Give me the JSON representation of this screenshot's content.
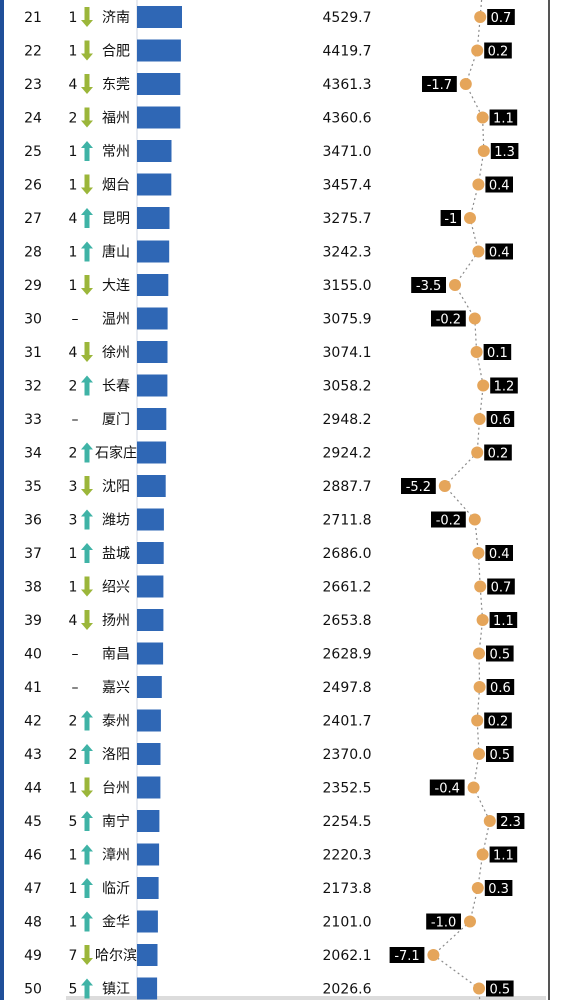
{
  "chart_data": {
    "type": "table",
    "colors": {
      "bar": "#2f67b5",
      "arrow_up": "#3fb3a6",
      "arrow_down": "#9bb63a",
      "dot": "#e5a55a",
      "label_bg": "#000000",
      "label_text": "#ffffff",
      "frame": "#1f4f99"
    },
    "rows": [
      {
        "rank": "21",
        "change": "1",
        "dir": "down",
        "city": "济南",
        "gdp": "4529.7",
        "growth": 0.7,
        "growth_label": "0.7"
      },
      {
        "rank": "22",
        "change": "1",
        "dir": "down",
        "city": "合肥",
        "gdp": "4419.7",
        "growth": 0.2,
        "growth_label": "0.2"
      },
      {
        "rank": "23",
        "change": "4",
        "dir": "down",
        "city": "东莞",
        "gdp": "4361.3",
        "growth": -1.7,
        "growth_label": "-1.7"
      },
      {
        "rank": "24",
        "change": "2",
        "dir": "down",
        "city": "福州",
        "gdp": "4360.6",
        "growth": 1.1,
        "growth_label": "1.1"
      },
      {
        "rank": "25",
        "change": "1",
        "dir": "up",
        "city": "常州",
        "gdp": "3471.0",
        "growth": 1.3,
        "growth_label": "1.3"
      },
      {
        "rank": "26",
        "change": "1",
        "dir": "down",
        "city": "烟台",
        "gdp": "3457.4",
        "growth": 0.4,
        "growth_label": "0.4"
      },
      {
        "rank": "27",
        "change": "4",
        "dir": "up",
        "city": "昆明",
        "gdp": "3275.7",
        "growth": -1,
        "growth_label": "-1"
      },
      {
        "rank": "28",
        "change": "1",
        "dir": "up",
        "city": "唐山",
        "gdp": "3242.3",
        "growth": 0.4,
        "growth_label": "0.4"
      },
      {
        "rank": "29",
        "change": "1",
        "dir": "down",
        "city": "大连",
        "gdp": "3155.0",
        "growth": -3.5,
        "growth_label": "-3.5"
      },
      {
        "rank": "30",
        "change": "–",
        "dir": "none",
        "city": "温州",
        "gdp": "3075.9",
        "growth": -0.2,
        "growth_label": "-0.2"
      },
      {
        "rank": "31",
        "change": "4",
        "dir": "down",
        "city": "徐州",
        "gdp": "3074.1",
        "growth": 0.1,
        "growth_label": "0.1"
      },
      {
        "rank": "32",
        "change": "2",
        "dir": "up",
        "city": "长春",
        "gdp": "3058.2",
        "growth": 1.2,
        "growth_label": "1.2"
      },
      {
        "rank": "33",
        "change": "–",
        "dir": "none",
        "city": "厦门",
        "gdp": "2948.2",
        "growth": 0.6,
        "growth_label": "0.6"
      },
      {
        "rank": "34",
        "change": "2",
        "dir": "up",
        "city": "石家庄",
        "gdp": "2924.2",
        "growth": 0.2,
        "growth_label": "0.2"
      },
      {
        "rank": "35",
        "change": "3",
        "dir": "down",
        "city": "沈阳",
        "gdp": "2887.7",
        "growth": -5.2,
        "growth_label": "-5.2"
      },
      {
        "rank": "36",
        "change": "3",
        "dir": "up",
        "city": "潍坊",
        "gdp": "2711.8",
        "growth": -0.2,
        "growth_label": "-0.2"
      },
      {
        "rank": "37",
        "change": "1",
        "dir": "up",
        "city": "盐城",
        "gdp": "2686.0",
        "growth": 0.4,
        "growth_label": "0.4"
      },
      {
        "rank": "38",
        "change": "1",
        "dir": "down",
        "city": "绍兴",
        "gdp": "2661.2",
        "growth": 0.7,
        "growth_label": "0.7"
      },
      {
        "rank": "39",
        "change": "4",
        "dir": "down",
        "city": "扬州",
        "gdp": "2653.8",
        "growth": 1.1,
        "growth_label": "1.1"
      },
      {
        "rank": "40",
        "change": "–",
        "dir": "none",
        "city": "南昌",
        "gdp": "2628.9",
        "growth": 0.5,
        "growth_label": "0.5"
      },
      {
        "rank": "41",
        "change": "–",
        "dir": "none",
        "city": "嘉兴",
        "gdp": "2497.8",
        "growth": 0.6,
        "growth_label": "0.6"
      },
      {
        "rank": "42",
        "change": "2",
        "dir": "up",
        "city": "泰州",
        "gdp": "2401.7",
        "growth": 0.2,
        "growth_label": "0.2"
      },
      {
        "rank": "43",
        "change": "2",
        "dir": "up",
        "city": "洛阳",
        "gdp": "2370.0",
        "growth": 0.5,
        "growth_label": "0.5"
      },
      {
        "rank": "44",
        "change": "1",
        "dir": "down",
        "city": "台州",
        "gdp": "2352.5",
        "growth": -0.4,
        "growth_label": "-0.4"
      },
      {
        "rank": "45",
        "change": "5",
        "dir": "up",
        "city": "南宁",
        "gdp": "2254.5",
        "growth": 2.3,
        "growth_label": "2.3"
      },
      {
        "rank": "46",
        "change": "1",
        "dir": "up",
        "city": "漳州",
        "gdp": "2220.3",
        "growth": 1.1,
        "growth_label": "1.1"
      },
      {
        "rank": "47",
        "change": "1",
        "dir": "up",
        "city": "临沂",
        "gdp": "2173.8",
        "growth": 0.3,
        "growth_label": "0.3"
      },
      {
        "rank": "48",
        "change": "1",
        "dir": "up",
        "city": "金华",
        "gdp": "2101.0",
        "growth": -1.0,
        "growth_label": "-1.0"
      },
      {
        "rank": "49",
        "change": "7",
        "dir": "down",
        "city": "哈尔滨",
        "gdp": "2062.1",
        "growth": -7.1,
        "growth_label": "-7.1"
      },
      {
        "rank": "50",
        "change": "5",
        "dir": "up",
        "city": "镇江",
        "gdp": "2026.6",
        "growth": 0.5,
        "growth_label": "0.5"
      }
    ]
  }
}
